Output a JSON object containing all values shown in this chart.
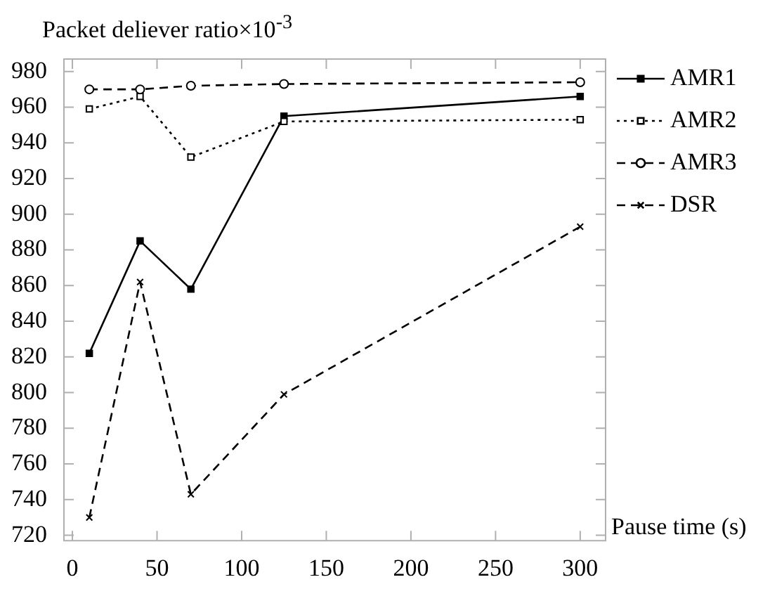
{
  "chart_data": {
    "type": "line",
    "ylabel": "Packet deliever ratio×10$^{-3}$",
    "xlabel": "Pause time (s)",
    "x": [
      10,
      40,
      70,
      125,
      300
    ],
    "xlim": [
      -5,
      315
    ],
    "xticks": [
      0,
      50,
      100,
      150,
      200,
      250,
      300
    ],
    "ylim": [
      717,
      987
    ],
    "yticks": [
      720,
      740,
      760,
      780,
      800,
      820,
      840,
      860,
      880,
      900,
      920,
      940,
      960,
      980
    ],
    "grid": false,
    "legend": "right",
    "series": [
      {
        "name": "AMR1",
        "color": "#000000",
        "values": [
          822,
          885,
          858,
          955,
          966
        ],
        "marker": "square",
        "line_style": "solid"
      },
      {
        "name": "AMR2",
        "color": "#000000",
        "values": [
          959,
          966,
          932,
          952,
          953
        ],
        "marker": "square",
        "line_style": "dotted"
      },
      {
        "name": "AMR3",
        "color": "#000000",
        "values": [
          970,
          970,
          972,
          973,
          974
        ],
        "marker": "circle",
        "line_style": "dashed"
      },
      {
        "name": "DSR",
        "color": "#000000",
        "values": [
          730,
          862,
          743,
          799,
          893
        ],
        "marker": "cross",
        "line_style": "dashed"
      }
    ]
  }
}
